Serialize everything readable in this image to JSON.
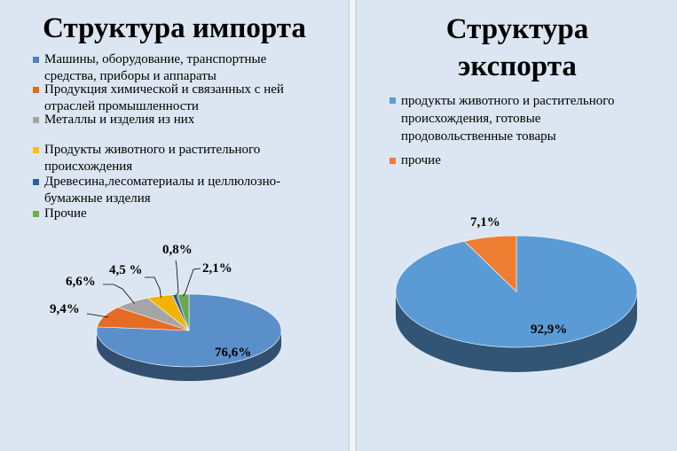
{
  "chart_data": [
    {
      "type": "pie",
      "title": "Структура импорта",
      "categories": [
        "Машины, оборудование, транспортные средства, приборы и аппараты",
        "Продукция химической и связанных с ней отраслей промышленности",
        "Металлы и изделия из них",
        "Продукты животного и растительного происхождения",
        "Древесина,лесоматериалы и целлюлозно-бумажные изделия",
        "Прочие"
      ],
      "values": [
        76.6,
        9.4,
        6.6,
        4.5,
        0.8,
        2.1
      ],
      "data_labels": [
        "76,6%",
        "9,4%",
        "6,6%",
        "4,5 %",
        "0,8%",
        "2,1%"
      ],
      "colors": [
        "#5b8fc9",
        "#e46c24",
        "#a5a5a5",
        "#f0b400",
        "#2b5ea8",
        "#6aa84f"
      ],
      "legend_position": "top",
      "style": "3d"
    },
    {
      "type": "pie",
      "title": "Структура экспорта",
      "categories": [
        "продукты животного и растительного происхождения, готовые продовольственные товары",
        "прочие"
      ],
      "values": [
        92.9,
        7.1
      ],
      "data_labels": [
        "92,9%",
        "7,1%"
      ],
      "colors": [
        "#5b9bd5",
        "#ed7d31"
      ],
      "legend_position": "top",
      "style": "3d"
    }
  ],
  "import": {
    "title": "Структура импорта",
    "legend": [
      {
        "line1": "Машины, оборудование, транспортные",
        "line2": "средства, приборы и аппараты",
        "color": "#4f81bd"
      },
      {
        "line1": "Продукция химической и связанных с ней",
        "line2": "отраслей промышленности",
        "color": "#e46c0a"
      },
      {
        "line1": "Металлы и изделия из них",
        "line2": "",
        "color": "#a5a5a5"
      },
      {
        "line1": "Продукты животного и растительного",
        "line2": "происхождения",
        "color": "#ffc000"
      },
      {
        "line1": "Древесина,лесоматериалы и целлюлозно-",
        "line2": "бумажные изделия",
        "color": "#2f5fa5"
      },
      {
        "line1": "Прочие",
        "line2": "",
        "color": "#70ad47"
      }
    ]
  },
  "export": {
    "title_line1": "Структура",
    "title_line2": "экспорта",
    "legend": [
      {
        "line1": "продукты животного и растительного",
        "line2": "происхождения, готовые",
        "line3": "продовольственные товары",
        "color": "#5b9bd5"
      },
      {
        "line1": "прочие",
        "line2": "",
        "line3": "",
        "color": "#ed7d31"
      }
    ]
  }
}
